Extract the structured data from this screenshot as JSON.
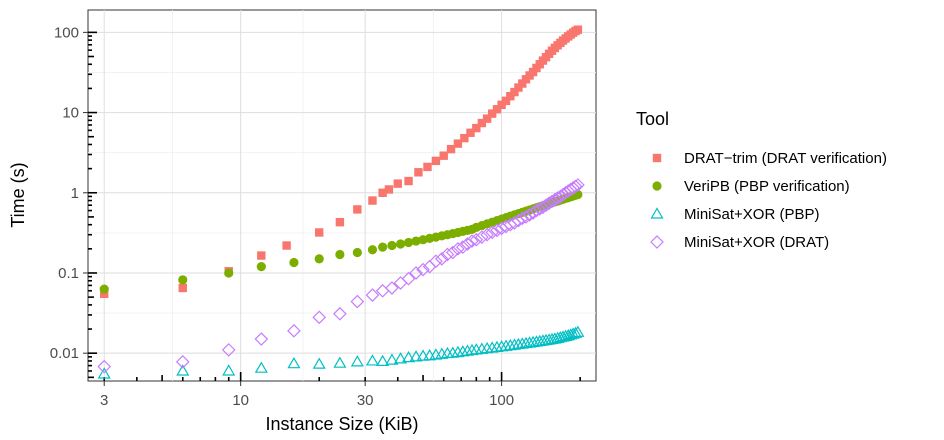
{
  "chart_data": {
    "type": "scatter",
    "xlabel": "Instance Size (KiB)",
    "ylabel": "Time (s)",
    "xscale": "log",
    "yscale": "log",
    "xlim": [
      2.6,
      230
    ],
    "ylim": [
      0.0045,
      190
    ],
    "x_ticks": [
      3,
      10,
      30,
      100
    ],
    "x_tick_labels": [
      "3",
      "10",
      "30",
      "100"
    ],
    "y_ticks": [
      0.01,
      0.1,
      1,
      10,
      100
    ],
    "y_tick_labels": [
      "0.01",
      "0.1",
      "1",
      "10",
      "100"
    ],
    "grid": true,
    "legend": {
      "title": "Tool",
      "position": "right"
    },
    "series": [
      {
        "name": "DRAT−trim (DRAT verification)",
        "marker": "square",
        "color": "#F8766D",
        "x": [
          3,
          6,
          9,
          12,
          15,
          20,
          24,
          28,
          32,
          35,
          37,
          40,
          44,
          48,
          52,
          56,
          60,
          64,
          68,
          72,
          76,
          80,
          84,
          88,
          92,
          96,
          100,
          104,
          108,
          112,
          116,
          120,
          124,
          128,
          132,
          136,
          140,
          144,
          148,
          152,
          156,
          160,
          164,
          168,
          172,
          176,
          180,
          184,
          188,
          192,
          196
        ],
        "y": [
          0.055,
          0.065,
          0.105,
          0.165,
          0.22,
          0.32,
          0.43,
          0.62,
          0.8,
          1.0,
          1.1,
          1.3,
          1.4,
          1.8,
          2.1,
          2.5,
          2.9,
          3.5,
          4.1,
          4.8,
          5.6,
          6.4,
          7.4,
          8.4,
          9.7,
          11,
          12.5,
          14,
          16,
          18,
          20.5,
          23,
          26,
          29,
          32,
          36,
          40,
          44.5,
          49,
          54,
          59,
          64,
          69,
          74,
          79,
          84,
          89,
          94,
          99,
          104,
          108
        ]
      },
      {
        "name": "VeriPB (PBP verification)",
        "marker": "circle",
        "color": "#7CAE00",
        "x": [
          3,
          6,
          9,
          12,
          16,
          20,
          24,
          28,
          32,
          35,
          38,
          41,
          44,
          47,
          50,
          53,
          56,
          59,
          62,
          65,
          68,
          71,
          74,
          77,
          80,
          84,
          88,
          92,
          96,
          100,
          104,
          108,
          112,
          116,
          120,
          124,
          128,
          132,
          136,
          140,
          144,
          148,
          152,
          156,
          160,
          164,
          168,
          172,
          176,
          180,
          184,
          188,
          192,
          196
        ],
        "y": [
          0.063,
          0.082,
          0.1,
          0.12,
          0.135,
          0.15,
          0.17,
          0.18,
          0.195,
          0.21,
          0.22,
          0.23,
          0.24,
          0.25,
          0.26,
          0.27,
          0.28,
          0.29,
          0.3,
          0.31,
          0.32,
          0.33,
          0.34,
          0.35,
          0.37,
          0.39,
          0.41,
          0.43,
          0.45,
          0.47,
          0.49,
          0.51,
          0.53,
          0.55,
          0.57,
          0.59,
          0.61,
          0.63,
          0.65,
          0.67,
          0.69,
          0.71,
          0.73,
          0.75,
          0.77,
          0.79,
          0.81,
          0.83,
          0.85,
          0.87,
          0.89,
          0.91,
          0.93,
          0.95
        ]
      },
      {
        "name": "MiniSat+XOR (PBP)",
        "marker": "triangle",
        "color": "#00BFC4",
        "x": [
          3,
          6,
          9,
          12,
          16,
          20,
          24,
          28,
          32,
          35,
          38,
          41,
          44,
          47,
          50,
          53,
          56,
          59,
          62,
          65,
          68,
          71,
          74,
          77,
          80,
          84,
          88,
          92,
          96,
          100,
          104,
          108,
          112,
          116,
          120,
          124,
          128,
          132,
          136,
          140,
          144,
          148,
          152,
          156,
          160,
          164,
          168,
          172,
          176,
          180,
          184,
          188,
          192,
          196
        ],
        "y": [
          0.0055,
          0.006,
          0.006,
          0.0065,
          0.0074,
          0.0073,
          0.0075,
          0.0078,
          0.008,
          0.0079,
          0.0082,
          0.0085,
          0.0088,
          0.009,
          0.0092,
          0.0093,
          0.0095,
          0.0097,
          0.0099,
          0.01,
          0.0102,
          0.0104,
          0.0106,
          0.0108,
          0.011,
          0.0112,
          0.0114,
          0.0116,
          0.0118,
          0.012,
          0.0122,
          0.0124,
          0.0126,
          0.0128,
          0.013,
          0.0132,
          0.0134,
          0.0136,
          0.0138,
          0.014,
          0.0142,
          0.0144,
          0.0146,
          0.0148,
          0.015,
          0.0153,
          0.0156,
          0.0159,
          0.0162,
          0.0165,
          0.0169,
          0.0173,
          0.0177,
          0.0182
        ]
      },
      {
        "name": "MiniSat+XOR (DRAT)",
        "marker": "diamond",
        "color": "#C77CFF",
        "x": [
          3,
          6,
          9,
          12,
          16,
          20,
          24,
          28,
          32,
          35,
          38,
          41,
          44,
          47,
          50,
          53,
          56,
          59,
          62,
          65,
          68,
          71,
          74,
          77,
          80,
          84,
          88,
          92,
          96,
          100,
          104,
          108,
          112,
          116,
          120,
          124,
          128,
          132,
          136,
          140,
          144,
          148,
          152,
          156,
          160,
          164,
          168,
          172,
          176,
          180,
          184,
          188,
          192,
          196
        ],
        "y": [
          0.0068,
          0.0078,
          0.011,
          0.015,
          0.019,
          0.028,
          0.031,
          0.044,
          0.053,
          0.06,
          0.065,
          0.075,
          0.085,
          0.1,
          0.11,
          0.12,
          0.14,
          0.15,
          0.17,
          0.18,
          0.2,
          0.21,
          0.23,
          0.25,
          0.26,
          0.28,
          0.3,
          0.32,
          0.34,
          0.36,
          0.38,
          0.4,
          0.42,
          0.45,
          0.48,
          0.5,
          0.53,
          0.56,
          0.6,
          0.63,
          0.66,
          0.7,
          0.74,
          0.78,
          0.82,
          0.86,
          0.9,
          0.95,
          1.0,
          1.05,
          1.1,
          1.15,
          1.2,
          1.25
        ]
      }
    ]
  }
}
